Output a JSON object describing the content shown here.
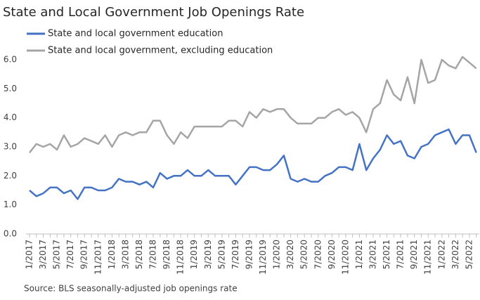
{
  "chart_data": {
    "type": "line",
    "title": "State and Local Government Job Openings Rate",
    "source": "Source: BLS seasonally-adjusted job openings rate",
    "categories": [
      "1/2017",
      null,
      "3/2017",
      null,
      "5/2017",
      null,
      "7/2017",
      null,
      "9/2017",
      null,
      "11/2017",
      null,
      "1/2018",
      null,
      "3/2018",
      null,
      "5/2018",
      null,
      "7/2018",
      null,
      "9/2018",
      null,
      "11/2018",
      null,
      "1/2019",
      null,
      "3/2019",
      null,
      "5/2019",
      null,
      "7/2019",
      null,
      "9/2019",
      null,
      "11/2019",
      null,
      "1/2020",
      null,
      "3/2020",
      null,
      "5/2020",
      null,
      "7/2020",
      null,
      "9/2020",
      null,
      "11/2020",
      null,
      "1/2021",
      null,
      "3/2021",
      null,
      "5/2021",
      null,
      "7/2021",
      null,
      "9/2021",
      null,
      "11/2021",
      null,
      "1/2022",
      null,
      "3/2022",
      null,
      "5/2022",
      null
    ],
    "series": [
      {
        "name": "State and local government education",
        "color": "#4472c4",
        "values": [
          1.5,
          1.3,
          1.4,
          1.6,
          1.6,
          1.4,
          1.5,
          1.2,
          1.6,
          1.6,
          1.5,
          1.5,
          1.6,
          1.9,
          1.8,
          1.8,
          1.7,
          1.8,
          1.6,
          2.1,
          1.9,
          2.0,
          2.0,
          2.2,
          2.0,
          2.0,
          2.2,
          2.0,
          2.0,
          2.0,
          1.7,
          2.0,
          2.3,
          2.3,
          2.2,
          2.2,
          2.4,
          2.7,
          1.9,
          1.8,
          1.9,
          1.8,
          1.8,
          2.0,
          2.1,
          2.3,
          2.3,
          2.2,
          3.1,
          2.2,
          2.6,
          2.9,
          3.4,
          3.1,
          3.2,
          2.7,
          2.6,
          3.0,
          3.1,
          3.4,
          3.5,
          3.6,
          3.1,
          3.4,
          3.4,
          2.8
        ]
      },
      {
        "name": "State and local government, excluding education",
        "color": "#a5a5a5",
        "values": [
          2.8,
          3.1,
          3.0,
          3.1,
          2.9,
          3.4,
          3.0,
          3.1,
          3.3,
          3.2,
          3.1,
          3.4,
          3.0,
          3.4,
          3.5,
          3.4,
          3.5,
          3.5,
          3.9,
          3.9,
          3.4,
          3.1,
          3.5,
          3.3,
          3.7,
          3.7,
          3.7,
          3.7,
          3.7,
          3.9,
          3.9,
          3.7,
          4.2,
          4.0,
          4.3,
          4.2,
          4.3,
          4.3,
          4.0,
          3.8,
          3.8,
          3.8,
          4.0,
          4.0,
          4.2,
          4.3,
          4.1,
          4.2,
          4.0,
          3.5,
          4.3,
          4.5,
          5.3,
          4.8,
          4.6,
          5.4,
          4.5,
          6.0,
          5.2,
          5.3,
          6.0,
          5.8,
          5.7,
          6.1,
          5.9,
          5.7
        ]
      }
    ],
    "ylim": [
      0,
      6
    ],
    "yticks": [
      {
        "value": 0,
        "label": "0.0"
      },
      {
        "value": 1,
        "label": "1.0"
      },
      {
        "value": 2,
        "label": "2.0"
      },
      {
        "value": 3,
        "label": "3.0"
      },
      {
        "value": 4,
        "label": "4.0"
      },
      {
        "value": 5,
        "label": "5.0"
      },
      {
        "value": 6,
        "label": "6.0"
      }
    ]
  }
}
